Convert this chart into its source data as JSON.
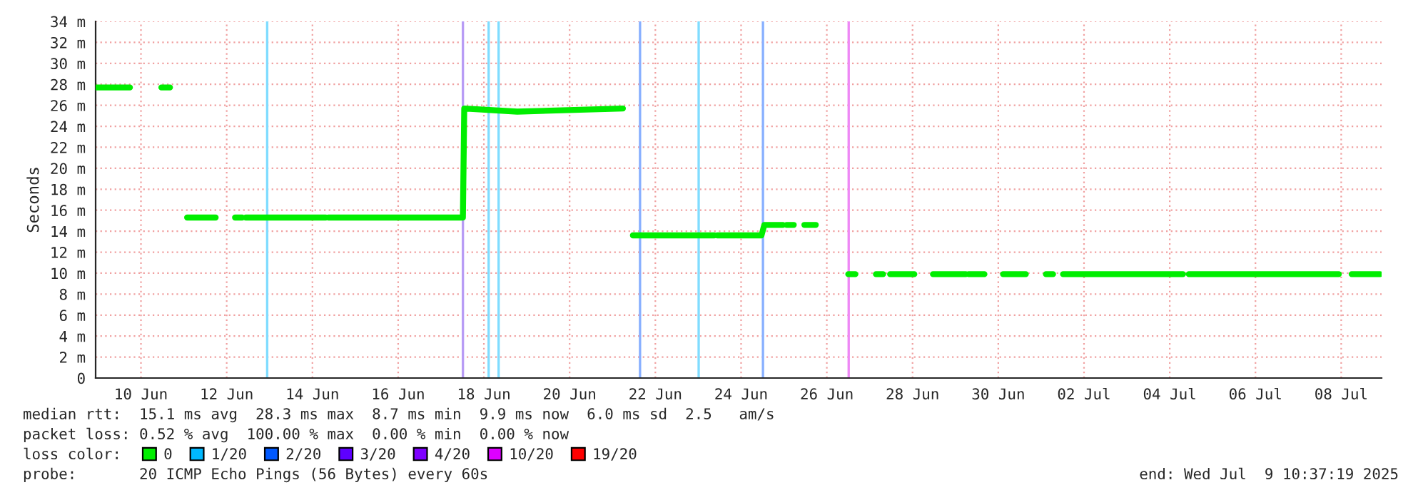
{
  "chart_data": {
    "type": "line",
    "ylabel": "Seconds",
    "legend_title": "loss color:",
    "legend": "bottom",
    "grid": true,
    "marker": "none",
    "line_style": "solid",
    "xlim": [
      "2025-06-09T10:37",
      "2025-07-09T10:37"
    ],
    "xticks": [
      {
        "value": "2025-06-10T12:00",
        "label": "10 Jun"
      },
      {
        "value": "2025-06-12T12:00",
        "label": "12 Jun"
      },
      {
        "value": "2025-06-14T12:00",
        "label": "14 Jun"
      },
      {
        "value": "2025-06-16T12:00",
        "label": "16 Jun"
      },
      {
        "value": "2025-06-18T12:00",
        "label": "18 Jun"
      },
      {
        "value": "2025-06-20T12:00",
        "label": "20 Jun"
      },
      {
        "value": "2025-06-22T12:00",
        "label": "22 Jun"
      },
      {
        "value": "2025-06-24T12:00",
        "label": "24 Jun"
      },
      {
        "value": "2025-06-26T12:00",
        "label": "26 Jun"
      },
      {
        "value": "2025-06-28T12:00",
        "label": "28 Jun"
      },
      {
        "value": "2025-06-30T12:00",
        "label": "30 Jun"
      },
      {
        "value": "2025-07-02T12:00",
        "label": "02 Jul"
      },
      {
        "value": "2025-07-04T12:00",
        "label": "04 Jul"
      },
      {
        "value": "2025-07-06T12:00",
        "label": "06 Jul"
      },
      {
        "value": "2025-07-08T12:00",
        "label": "08 Jul"
      }
    ],
    "ylim": [
      0,
      34
    ],
    "yticks": [
      0,
      {
        "value": 2,
        "label": "2 m"
      },
      {
        "value": 4,
        "label": "4 m"
      },
      {
        "value": 6,
        "label": "6 m"
      },
      {
        "value": 8,
        "label": "8 m"
      },
      {
        "value": 10,
        "label": "10 m"
      },
      {
        "value": 12,
        "label": "12 m"
      },
      {
        "value": 14,
        "label": "14 m"
      },
      {
        "value": 16,
        "label": "16 m"
      },
      {
        "value": 18,
        "label": "18 m"
      },
      {
        "value": 20,
        "label": "20 m"
      },
      {
        "value": 22,
        "label": "22 m"
      },
      {
        "value": 24,
        "label": "24 m"
      },
      {
        "value": 26,
        "label": "26 m"
      },
      {
        "value": 28,
        "label": "28 m"
      },
      {
        "value": 30,
        "label": "30 m"
      },
      {
        "value": 32,
        "label": "32 m"
      },
      {
        "value": 34,
        "label": "34 m"
      }
    ],
    "series": [
      {
        "name": "0",
        "color": "#00ee00",
        "x": [
          "2025-06-09T10:40",
          "2025-06-10T05:50",
          "2025-06-10T14:00",
          "2025-06-10T23:25",
          "2025-06-11T04:15",
          "2025-06-11T09:00",
          "2025-06-11T13:50",
          "2025-06-12T05:50",
          "2025-06-12T12:00",
          "2025-06-12T16:40",
          "2025-06-12T20:40",
          "2025-06-12T21:00",
          "2025-06-12T22:40",
          "2025-06-14T19:25",
          "2025-06-14T20:10",
          "2025-06-14T21:00",
          "2025-06-17T23:25",
          "2025-06-18T00:15",
          "2025-06-18T01:00",
          "2025-06-19T06:40",
          "2025-06-21T17:50",
          "2025-06-21T20:40",
          "2025-06-21T23:25",
          "2025-06-23T21:00",
          "2025-06-23T21:50",
          "2025-06-23T22:40",
          "2025-06-24T23:25",
          "2025-06-25T01:00",
          "2025-06-25T11:25",
          "2025-06-25T13:00",
          "2025-06-25T13:30",
          "2025-06-25T17:30",
          "2025-06-25T20:00",
          "2025-06-25T23:25",
          "2025-06-26T05:50",
          "2025-06-26T15:00",
          "2025-06-27T00:00",
          "2025-06-27T04:00",
          "2025-06-27T10:00",
          "2025-06-27T15:30",
          "2025-06-27T19:30",
          "2025-06-27T20:40",
          "2025-06-27T23:25",
          "2025-06-28T13:00",
          "2025-06-28T18:10",
          "2025-06-28T23:25",
          "2025-06-29T17:50",
          "2025-06-29T18:40",
          "2025-06-29T19:25",
          "2025-06-30T04:15",
          "2025-06-30T09:30",
          "2025-06-30T14:40",
          "2025-06-30T22:40",
          "2025-06-30T23:00",
          "2025-06-30T23:25",
          "2025-07-01T03:25",
          "2025-07-01T10:00",
          "2025-07-01T14:40",
          "2025-07-01T18:40",
          "2025-07-01T20:40",
          "2025-07-02T00:15",
          "2025-07-04T19:25",
          "2025-07-04T21:00",
          "2025-07-04T22:40",
          "2025-07-08T10:40",
          "2025-07-08T14:10",
          "2025-07-08T17:50",
          "2025-07-09T09:50"
        ],
        "values": [
          27.7,
          27.7,
          null,
          27.7,
          27.7,
          null,
          15.3,
          15.3,
          null,
          15.3,
          15.3,
          null,
          15.3,
          15.3,
          null,
          15.3,
          15.3,
          15.3,
          25.7,
          25.4,
          25.7,
          null,
          13.6,
          13.6,
          null,
          13.6,
          13.6,
          14.6,
          14.6,
          null,
          14.6,
          14.6,
          null,
          14.6,
          14.6,
          null,
          9.9,
          9.9,
          null,
          9.9,
          9.9,
          null,
          9.9,
          9.9,
          null,
          9.9,
          9.9,
          null,
          9.9,
          9.9,
          null,
          9.9,
          9.9,
          null,
          9.9,
          9.9,
          null,
          9.9,
          9.9,
          null,
          9.9,
          9.9,
          null,
          9.9,
          9.9,
          null,
          9.9,
          9.9
        ]
      },
      {
        "name": "1/20",
        "color": "#00b8ff"
      },
      {
        "name": "2/20",
        "color": "#0059ff"
      },
      {
        "name": "3/20",
        "color": "#5e00ff"
      },
      {
        "name": "4/20",
        "color": "#7e00ff"
      },
      {
        "name": "10/20",
        "color": "#dd00ff"
      },
      {
        "name": "19/20",
        "color": "#ff0000"
      }
    ],
    "ref_lines": [
      {
        "axis": "x",
        "value": "2025-06-13T10:40",
        "color": "#80dcff"
      },
      {
        "axis": "x",
        "value": "2025-06-18T00:15",
        "color": "#b89cf5",
        "line_style": "solid"
      },
      {
        "axis": "x",
        "value": "2025-06-18T14:40",
        "color": "#80dcff"
      },
      {
        "axis": "x",
        "value": "2025-06-18T20:15",
        "color": "#80dcff"
      },
      {
        "axis": "x",
        "value": "2025-06-22T03:25",
        "color": "#88b0ff"
      },
      {
        "axis": "x",
        "value": "2025-06-23T12:15",
        "color": "#80dcff"
      },
      {
        "axis": "x",
        "value": "2025-06-25T00:15",
        "color": "#88b0ff"
      },
      {
        "axis": "x",
        "value": "2025-06-27T00:15",
        "color": "#ee88f5"
      }
    ],
    "annotations": [
      "median rtt:  15.1 ms avg  28.3 ms max  8.7 ms min  9.9 ms now  6.0 ms sd  2.5   am/s",
      "packet loss: 0.52 % avg  100.00 % max  0.00 % min  0.00 % now",
      "probe:       20 ICMP Echo Pings (56 Bytes) every 60s",
      "end: Wed Jul  9 10:37:19 2025"
    ]
  }
}
